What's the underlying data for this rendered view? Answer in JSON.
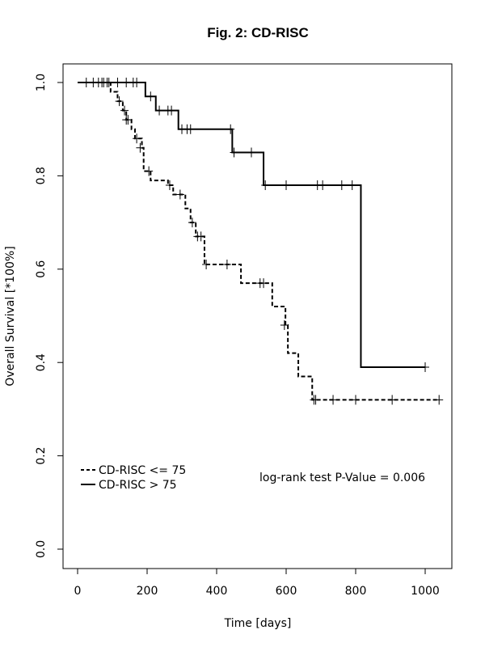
{
  "chart_data": {
    "type": "line",
    "title": "Fig. 2: CD-RISC",
    "xlabel": "Time [days]",
    "ylabel": "Overall Survival [*100%]",
    "xlim": [
      0,
      1050
    ],
    "ylim": [
      0,
      1.04
    ],
    "x_ticks": [
      0,
      200,
      400,
      600,
      800,
      1000
    ],
    "y_ticks": [
      0.0,
      0.2,
      0.4,
      0.6,
      0.8,
      1.0
    ],
    "x_tick_labels": [
      "0",
      "200",
      "400",
      "600",
      "800",
      "1000"
    ],
    "y_tick_labels": [
      "0.0",
      "0.2",
      "0.4",
      "0.6",
      "0.8",
      "1.0"
    ],
    "grid": false,
    "legend_position": "bottom-left",
    "annotation": "log-rank test P-Value = 0.006",
    "series": [
      {
        "name": "CD-RISC <= 75",
        "style": "dashed",
        "color": "#000000",
        "steps": [
          [
            0,
            1.0
          ],
          [
            95,
            0.98
          ],
          [
            115,
            0.96
          ],
          [
            130,
            0.94
          ],
          [
            140,
            0.92
          ],
          [
            155,
            0.9
          ],
          [
            165,
            0.88
          ],
          [
            185,
            0.86
          ],
          [
            190,
            0.81
          ],
          [
            210,
            0.79
          ],
          [
            260,
            0.78
          ],
          [
            275,
            0.76
          ],
          [
            310,
            0.73
          ],
          [
            325,
            0.7
          ],
          [
            340,
            0.67
          ],
          [
            365,
            0.61
          ],
          [
            470,
            0.57
          ],
          [
            560,
            0.52
          ],
          [
            598,
            0.48
          ],
          [
            605,
            0.42
          ],
          [
            635,
            0.37
          ],
          [
            675,
            0.32
          ],
          [
            1040,
            0.32
          ]
        ],
        "censor": [
          [
            25,
            1.0
          ],
          [
            45,
            1.0
          ],
          [
            60,
            1.0
          ],
          [
            70,
            1.0
          ],
          [
            75,
            1.0
          ],
          [
            85,
            1.0
          ],
          [
            90,
            1.0
          ],
          [
            120,
            0.96
          ],
          [
            135,
            0.94
          ],
          [
            140,
            0.92
          ],
          [
            145,
            0.92
          ],
          [
            170,
            0.88
          ],
          [
            180,
            0.86
          ],
          [
            205,
            0.81
          ],
          [
            265,
            0.78
          ],
          [
            295,
            0.76
          ],
          [
            330,
            0.7
          ],
          [
            345,
            0.67
          ],
          [
            355,
            0.67
          ],
          [
            370,
            0.61
          ],
          [
            430,
            0.61
          ],
          [
            525,
            0.57
          ],
          [
            535,
            0.57
          ],
          [
            595,
            0.48
          ],
          [
            680,
            0.32
          ],
          [
            685,
            0.32
          ],
          [
            735,
            0.32
          ],
          [
            800,
            0.32
          ],
          [
            905,
            0.32
          ],
          [
            1040,
            0.32
          ]
        ]
      },
      {
        "name": "CD-RISC > 75",
        "style": "solid",
        "color": "#000000",
        "steps": [
          [
            0,
            1.0
          ],
          [
            195,
            0.97
          ],
          [
            225,
            0.94
          ],
          [
            290,
            0.9
          ],
          [
            445,
            0.85
          ],
          [
            535,
            0.78
          ],
          [
            815,
            0.39
          ],
          [
            1000,
            0.39
          ]
        ],
        "censor": [
          [
            115,
            1.0
          ],
          [
            140,
            1.0
          ],
          [
            160,
            1.0
          ],
          [
            170,
            1.0
          ],
          [
            210,
            0.97
          ],
          [
            235,
            0.94
          ],
          [
            260,
            0.94
          ],
          [
            270,
            0.94
          ],
          [
            300,
            0.9
          ],
          [
            315,
            0.9
          ],
          [
            325,
            0.9
          ],
          [
            440,
            0.9
          ],
          [
            450,
            0.85
          ],
          [
            500,
            0.85
          ],
          [
            540,
            0.78
          ],
          [
            600,
            0.78
          ],
          [
            690,
            0.78
          ],
          [
            705,
            0.78
          ],
          [
            760,
            0.78
          ],
          [
            790,
            0.78
          ],
          [
            1000,
            0.39
          ]
        ]
      }
    ]
  }
}
